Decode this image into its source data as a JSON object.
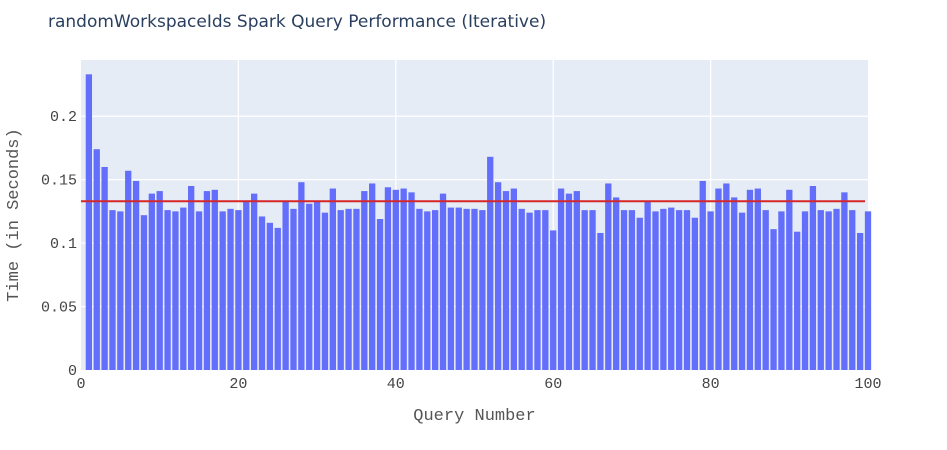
{
  "chart_data": {
    "type": "bar",
    "title": "randomWorkspaceIds Spark Query Performance (Iterative)",
    "xlabel": "Query Number",
    "ylabel": "Time (in Seconds)",
    "xlim": [
      0,
      100
    ],
    "ylim": [
      0,
      0.2443
    ],
    "x_ticks": [
      0,
      20,
      40,
      60,
      80,
      100
    ],
    "x_tick_labels": [
      "0",
      "20",
      "40",
      "60",
      "80",
      "100"
    ],
    "y_ticks": [
      0,
      0.05,
      0.1,
      0.15,
      0.2
    ],
    "y_tick_labels": [
      "0",
      "0.05",
      "0.1",
      "0.15",
      "0.2"
    ],
    "grid": true,
    "legend": "none",
    "bar_color": "#636efa",
    "plot_background": "#e5ecf6",
    "mean_line_color": "#d62728",
    "mean_value": 0.133,
    "series": [
      {
        "x": [
          1,
          2,
          3,
          4,
          5,
          6,
          7,
          8,
          9,
          10,
          11,
          12,
          13,
          14,
          15,
          16,
          17,
          18,
          19,
          20,
          21,
          22,
          23,
          24,
          25,
          26,
          27,
          28,
          29,
          30,
          31,
          32,
          33,
          34,
          35,
          36,
          37,
          38,
          39,
          40,
          41,
          42,
          43,
          44,
          45,
          46,
          47,
          48,
          49,
          50,
          51,
          52,
          53,
          54,
          55,
          56,
          57,
          58,
          59,
          60,
          61,
          62,
          63,
          64,
          65,
          66,
          67,
          68,
          69,
          70,
          71,
          72,
          73,
          74,
          75,
          76,
          77,
          78,
          79,
          80,
          81,
          82,
          83,
          84,
          85,
          86,
          87,
          88,
          89,
          90,
          91,
          92,
          93,
          94,
          95,
          96,
          97,
          98,
          99,
          100
        ],
        "values": [
          0.233,
          0.174,
          0.16,
          0.126,
          0.125,
          0.157,
          0.149,
          0.122,
          0.139,
          0.141,
          0.126,
          0.125,
          0.128,
          0.145,
          0.125,
          0.141,
          0.142,
          0.125,
          0.127,
          0.126,
          0.133,
          0.139,
          0.121,
          0.116,
          0.112,
          0.133,
          0.127,
          0.148,
          0.131,
          0.133,
          0.124,
          0.143,
          0.126,
          0.127,
          0.127,
          0.141,
          0.147,
          0.119,
          0.144,
          0.142,
          0.143,
          0.14,
          0.127,
          0.125,
          0.126,
          0.139,
          0.128,
          0.128,
          0.127,
          0.127,
          0.126,
          0.168,
          0.148,
          0.141,
          0.143,
          0.127,
          0.124,
          0.126,
          0.126,
          0.11,
          0.143,
          0.139,
          0.141,
          0.126,
          0.126,
          0.108,
          0.147,
          0.136,
          0.126,
          0.126,
          0.12,
          0.133,
          0.125,
          0.127,
          0.128,
          0.126,
          0.126,
          0.12,
          0.149,
          0.125,
          0.143,
          0.147,
          0.136,
          0.124,
          0.142,
          0.143,
          0.126,
          0.111,
          0.125,
          0.142,
          0.109,
          0.125,
          0.145,
          0.126,
          0.125,
          0.127,
          0.14,
          0.126,
          0.108,
          0.125
        ]
      }
    ]
  }
}
